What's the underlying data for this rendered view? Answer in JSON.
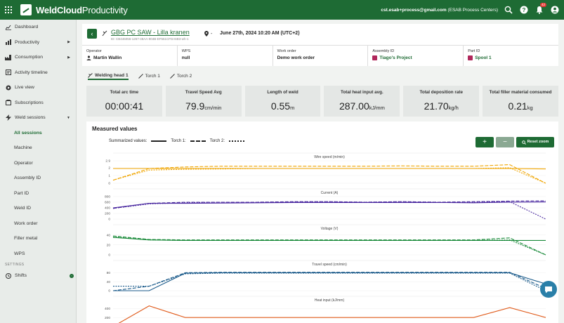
{
  "app": {
    "name_bold": "WeldCloud",
    "name_light": "Productivity"
  },
  "topbar": {
    "email": "cst.esab+process@gmail.com",
    "org": "(ESAB Process Centers)",
    "notification_count": "42",
    "icons": [
      "apps-icon",
      "search-icon",
      "help-icon",
      "bell-icon",
      "user-icon"
    ]
  },
  "sidebar": {
    "items": [
      {
        "label": "Dashboard",
        "icon": "dashboard-icon"
      },
      {
        "label": "Productivity",
        "icon": "chart-icon",
        "caret": "▶"
      },
      {
        "label": "Consumption",
        "icon": "factory-icon",
        "caret": "▶"
      },
      {
        "label": "Activity timeline",
        "icon": "timeline-icon"
      },
      {
        "label": "Live view",
        "icon": "live-icon"
      },
      {
        "label": "Subscriptions",
        "icon": "subscriptions-icon"
      },
      {
        "label": "Weld sessions",
        "icon": "bolt-icon",
        "caret": "▼"
      }
    ],
    "sub_items": [
      "All sessions",
      "Machine",
      "Operator",
      "Assembly ID",
      "Part ID",
      "Weld ID",
      "Work order",
      "Filler metal",
      "WPS"
    ],
    "section_settings": "SETTINGS",
    "shifts_label": "Shifts"
  },
  "session": {
    "title": "GBG PC SAW - Lilla kranen",
    "id": "ID: CB446056-1267-48AA-904B-EF561CFDA6B3-wh-1",
    "location": "-",
    "date": "June 27th, 2024 10:20 AM (UTC+2)"
  },
  "info": [
    {
      "label": "Operator",
      "value": "Martin Wallin"
    },
    {
      "label": "WPS",
      "value": "null"
    },
    {
      "label": "Work order",
      "value": "Demo work order"
    },
    {
      "label": "Assembly ID",
      "value": "Tiago's Project"
    },
    {
      "label": "Part ID",
      "value": "Spool 1"
    }
  ],
  "tabs": [
    "Welding head 1",
    "Torch 1",
    "Torch 2"
  ],
  "stats": [
    {
      "label": "Total arc time",
      "value": "00:00:41",
      "unit": ""
    },
    {
      "label": "Travel Speed Avg",
      "value": "79.9",
      "unit": "cm/min"
    },
    {
      "label": "Length of weld",
      "value": "0.55",
      "unit": "m"
    },
    {
      "label": "Total heat input avg.",
      "value": "287.00",
      "unit": "kJ/mm"
    },
    {
      "label": "Total deposition rate",
      "value": "21.70",
      "unit": "kg/h"
    },
    {
      "label": "Total filler material consumed",
      "value": "0.21",
      "unit": "kg"
    }
  ],
  "measured": {
    "title": "Measured values",
    "legend_summary": "Summarized values:",
    "legend_torch1": "Torch 1:",
    "legend_torch2": "Torch 2:",
    "reset_zoom": "Reset zoom",
    "plus": "+",
    "minus": "−"
  },
  "chart_data": [
    {
      "type": "line",
      "title": "Wire speed (m/min)",
      "color": "#f0a500",
      "yticks": [
        0,
        1.0,
        2.0,
        2.9
      ],
      "ylim": [
        0,
        2.9
      ],
      "series": [
        {
          "name": "Summarized values:",
          "values": [
            1.9,
            1.9,
            1.9,
            1.9,
            1.9,
            1.9,
            1.9,
            1.9,
            1.9,
            1.9,
            1.9,
            1.9,
            1.85
          ]
        },
        {
          "name": "Torch 1:",
          "values": [
            0.4,
            1.9,
            2.1,
            2.2,
            2.2,
            2.2,
            2.2,
            2.2,
            2.25,
            2.2,
            2.2,
            2.4,
            0.0
          ]
        },
        {
          "name": "Torch 2:",
          "values": [
            0.4,
            1.7,
            1.8,
            1.85,
            1.9,
            1.9,
            1.9,
            1.9,
            1.9,
            1.9,
            1.9,
            2.0,
            0.0
          ]
        }
      ]
    },
    {
      "type": "line",
      "title": "Current (A)",
      "color": "#4b2aa0",
      "yticks": [
        0,
        200,
        400,
        600,
        800
      ],
      "ylim": [
        0,
        800
      ],
      "series": [
        {
          "name": "Summarized values:",
          "values": [
            400,
            560,
            560,
            570,
            580,
            590,
            590,
            590,
            590,
            590,
            580,
            600,
            610
          ]
        },
        {
          "name": "Torch 1:",
          "values": [
            380,
            560,
            600,
            600,
            600,
            620,
            620,
            600,
            620,
            600,
            620,
            640,
            650
          ]
        },
        {
          "name": "Torch 2:",
          "values": [
            380,
            540,
            580,
            600,
            600,
            610,
            620,
            600,
            620,
            600,
            600,
            620,
            0
          ]
        }
      ]
    },
    {
      "type": "line",
      "title": "Voltage (V)",
      "color": "#1a8a3a",
      "yticks": [
        0,
        20,
        40
      ],
      "ylim": [
        0,
        45
      ],
      "series": [
        {
          "name": "Summarized values:",
          "values": [
            35,
            30,
            29,
            29,
            29,
            29,
            29,
            29,
            29,
            29,
            29,
            29,
            29
          ]
        },
        {
          "name": "Torch 1:",
          "values": [
            38,
            31,
            30,
            30,
            30,
            30,
            30,
            30,
            30,
            30,
            30,
            34,
            0
          ]
        },
        {
          "name": "Torch 2:",
          "values": [
            36,
            30,
            29,
            29,
            29,
            29,
            29,
            29,
            29,
            29,
            29,
            30,
            0
          ]
        }
      ]
    },
    {
      "type": "line",
      "title": "Travel speed (cm/min)",
      "color": "#1a5a8a",
      "yticks": [
        0,
        40,
        80
      ],
      "ylim": [
        0,
        100
      ],
      "series": [
        {
          "name": "Summarized values:",
          "values": [
            0,
            0,
            78,
            80,
            80,
            80,
            80,
            80,
            80,
            80,
            80,
            80,
            30
          ]
        },
        {
          "name": "Torch 1:",
          "values": [
            0,
            20,
            80,
            82,
            82,
            82,
            82,
            82,
            82,
            82,
            82,
            82,
            10
          ]
        },
        {
          "name": "Torch 2:",
          "values": [
            20,
            20,
            75,
            78,
            78,
            78,
            78,
            78,
            78,
            78,
            78,
            78,
            0
          ]
        }
      ]
    },
    {
      "type": "line",
      "title": "Heat input (kJ/mm)",
      "color": "#e05a1a",
      "yticks": [
        200,
        400
      ],
      "ylim": [
        0,
        500
      ],
      "series": [
        {
          "name": "Summarized values:",
          "values": [
            0,
            460,
            200,
            200,
            200,
            200,
            200,
            200,
            200,
            200,
            200,
            420,
            200
          ]
        }
      ]
    }
  ]
}
